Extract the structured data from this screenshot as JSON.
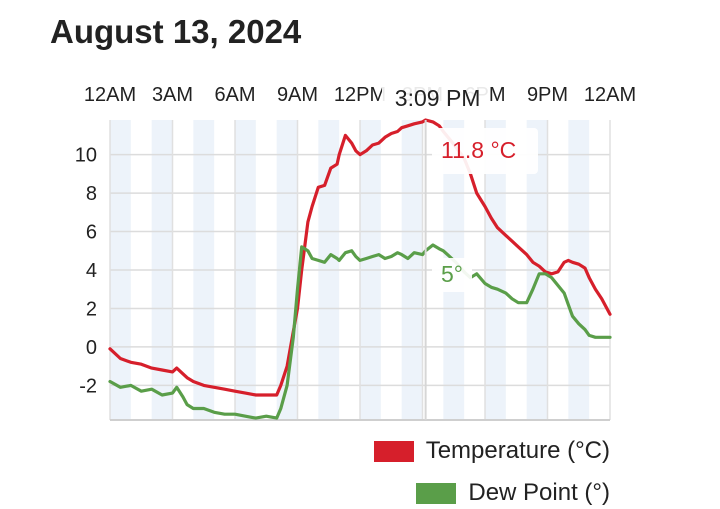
{
  "header": {
    "date": "August 13, 2024"
  },
  "chart_data": {
    "type": "line",
    "x_tick_labels": [
      "12AM",
      "3AM",
      "6AM",
      "9AM",
      "12PM",
      "3PM",
      "6PM",
      "9PM",
      "12AM"
    ],
    "x_unit": "hours since midnight",
    "xlim": [
      0,
      24
    ],
    "ylim": [
      -3.8,
      11.8
    ],
    "y_ticks": [
      -2,
      0,
      2,
      4,
      6,
      8,
      10
    ],
    "grid": true,
    "legend_position": "bottom-right",
    "tooltip": {
      "time_label": "3:09 PM",
      "time_hours": 15.15,
      "temperature_label": "11.8 °C",
      "dew_point_label": "5°"
    },
    "series": [
      {
        "name": "Temperature (°C)",
        "color": "#d61f2b",
        "x": [
          0,
          0.5,
          1,
          1.5,
          2,
          2.5,
          3,
          3.2,
          3.5,
          3.7,
          4,
          4.5,
          5,
          5.5,
          6,
          6.5,
          7,
          7.5,
          8,
          8.2,
          8.5,
          8.8,
          9,
          9.2,
          9.5,
          9.7,
          10,
          10.3,
          10.6,
          10.9,
          11,
          11.3,
          11.6,
          11.8,
          12,
          12.3,
          12.6,
          12.9,
          13.2,
          13.5,
          13.8,
          14,
          14.3,
          14.6,
          15,
          15.15,
          15.5,
          15.8,
          16,
          16.3,
          16.6,
          17,
          17.3,
          17.6,
          18,
          18.3,
          18.6,
          19,
          19.3,
          19.6,
          20,
          20.3,
          20.6,
          20.9,
          21.2,
          21.5,
          21.8,
          22,
          22.2,
          22.5,
          22.8,
          23,
          23.3,
          23.6,
          24
        ],
        "y": [
          -0.1,
          -0.6,
          -0.8,
          -0.9,
          -1.1,
          -1.2,
          -1.3,
          -1.1,
          -1.4,
          -1.6,
          -1.8,
          -2.0,
          -2.1,
          -2.2,
          -2.3,
          -2.4,
          -2.5,
          -2.5,
          -2.5,
          -2.0,
          -1.0,
          0.8,
          2.0,
          4.0,
          6.5,
          7.3,
          8.3,
          8.4,
          9.3,
          9.5,
          10.0,
          11.0,
          10.6,
          10.2,
          10.0,
          10.2,
          10.5,
          10.6,
          10.9,
          11.1,
          11.2,
          11.4,
          11.5,
          11.6,
          11.7,
          11.8,
          11.7,
          11.5,
          11.2,
          10.8,
          10.4,
          9.8,
          9.0,
          8.0,
          7.3,
          6.7,
          6.2,
          5.8,
          5.5,
          5.2,
          4.8,
          4.4,
          4.2,
          3.9,
          3.8,
          3.9,
          4.4,
          4.5,
          4.4,
          4.3,
          4.1,
          3.6,
          3.0,
          2.5,
          1.7
        ]
      },
      {
        "name": "Dew Point (°)",
        "color": "#5a9e49",
        "x": [
          0,
          0.5,
          1,
          1.5,
          2,
          2.5,
          3,
          3.2,
          3.5,
          3.7,
          4,
          4.5,
          5,
          5.5,
          6,
          6.5,
          7,
          7.5,
          8,
          8.2,
          8.5,
          8.8,
          9,
          9.2,
          9.5,
          9.7,
          10,
          10.3,
          10.6,
          10.9,
          11,
          11.3,
          11.6,
          11.8,
          12,
          12.3,
          12.6,
          12.9,
          13.2,
          13.5,
          13.8,
          14,
          14.3,
          14.6,
          15,
          15.15,
          15.5,
          15.8,
          16,
          16.3,
          16.6,
          17,
          17.3,
          17.6,
          18,
          18.3,
          18.6,
          19,
          19.3,
          19.6,
          20,
          20.3,
          20.6,
          20.9,
          21.2,
          21.5,
          21.8,
          22,
          22.2,
          22.5,
          22.8,
          23,
          23.3,
          23.6,
          24
        ],
        "y": [
          -1.8,
          -2.1,
          -2.0,
          -2.3,
          -2.2,
          -2.5,
          -2.4,
          -2.1,
          -2.6,
          -3.0,
          -3.2,
          -3.2,
          -3.4,
          -3.5,
          -3.5,
          -3.6,
          -3.7,
          -3.6,
          -3.7,
          -3.2,
          -2.0,
          0.5,
          3.0,
          5.2,
          5.0,
          4.6,
          4.5,
          4.4,
          4.8,
          4.6,
          4.5,
          4.9,
          5.0,
          4.7,
          4.5,
          4.6,
          4.7,
          4.8,
          4.6,
          4.7,
          4.9,
          4.8,
          4.6,
          4.9,
          4.8,
          5.0,
          5.3,
          5.1,
          5.0,
          4.7,
          4.4,
          3.9,
          3.6,
          3.8,
          3.3,
          3.1,
          3.0,
          2.8,
          2.5,
          2.3,
          2.3,
          3.0,
          3.8,
          3.8,
          3.6,
          3.2,
          2.8,
          2.2,
          1.6,
          1.2,
          0.9,
          0.6,
          0.5,
          0.5,
          0.5
        ]
      }
    ]
  }
}
